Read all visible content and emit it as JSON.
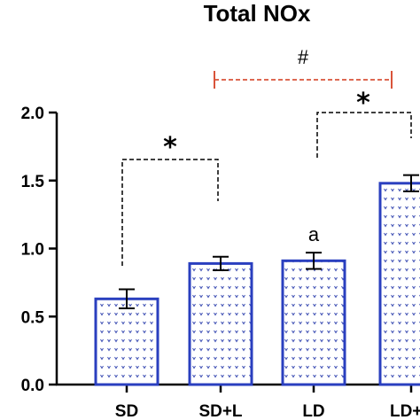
{
  "chart_data": {
    "type": "bar",
    "title": "Total NOx",
    "xlabel": "",
    "ylabel": "",
    "categories": [
      "SD",
      "SD+L",
      "LD",
      "LD+L"
    ],
    "values": [
      0.63,
      0.89,
      0.91,
      1.48
    ],
    "errors": [
      0.07,
      0.05,
      0.06,
      0.06
    ],
    "ylim": [
      0,
      2.0
    ],
    "yticks": [
      "0.0",
      "0.5",
      "1.0",
      "1.5",
      "2.0"
    ],
    "yticks_values": [
      0,
      0.5,
      1.0,
      1.5,
      2.0
    ],
    "grid": false,
    "bar_fill_pattern": "dotted",
    "bar_edge_color": "#2a3fbf",
    "annotations": {
      "stars": [
        "*",
        "*"
      ],
      "hash": "#",
      "letter": "a"
    }
  }
}
